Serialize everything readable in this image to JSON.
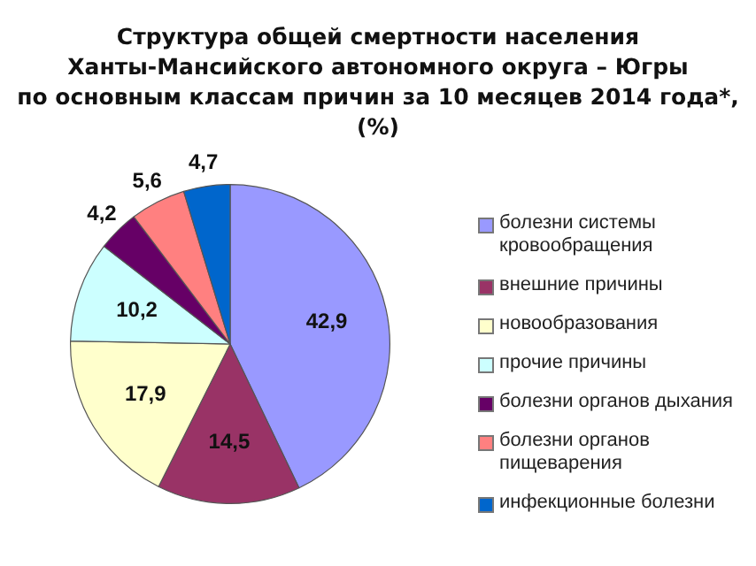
{
  "chart_data": {
    "type": "pie",
    "title": "Структура общей смертности населения\nХанты-Мансийского автономного округа – Югры\nпо основным классам причин за 10 месяцев 2014 года*, (%)",
    "categories": [
      "болезни системы кровообращения",
      "внешние причины",
      "новообразования",
      "прочие причины",
      "болезни органов дыхания",
      "болезни органов пищеварения",
      "инфекционные болезни"
    ],
    "values": [
      42.9,
      14.5,
      17.9,
      10.2,
      4.2,
      5.6,
      4.7
    ],
    "value_labels": [
      "42,9",
      "14,5",
      "17,9",
      "10,2",
      "4,2",
      "5,6",
      "4,7"
    ],
    "colors": [
      "#9999ff",
      "#993366",
      "#ffffcc",
      "#ccffff",
      "#660066",
      "#ff8080",
      "#0066cc"
    ],
    "legend": "right"
  }
}
